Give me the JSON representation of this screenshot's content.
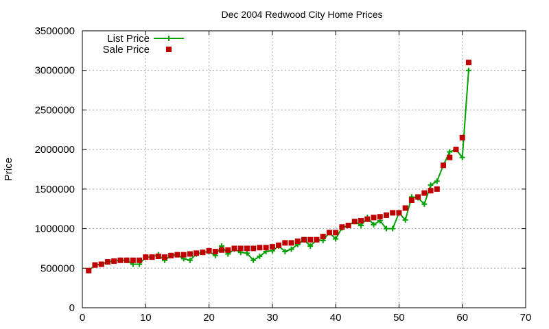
{
  "chart_data": {
    "type": "line",
    "title": "Dec 2004 Redwood City Home Prices",
    "xlabel": "",
    "ylabel": "Price",
    "xlim": [
      0,
      70
    ],
    "ylim": [
      0,
      3500000
    ],
    "x_ticks": [
      "0",
      "10",
      "20",
      "30",
      "40",
      "50",
      "60",
      "70"
    ],
    "y_ticks": [
      "0",
      "500000",
      "1000000",
      "1500000",
      "2000000",
      "2500000",
      "3000000",
      "3500000"
    ],
    "grid": true,
    "legend_position": "top-left",
    "x": [
      1,
      2,
      3,
      4,
      5,
      6,
      7,
      8,
      9,
      10,
      11,
      12,
      13,
      14,
      15,
      16,
      17,
      18,
      19,
      20,
      21,
      22,
      23,
      24,
      25,
      26,
      27,
      28,
      29,
      30,
      31,
      32,
      33,
      34,
      35,
      36,
      37,
      38,
      39,
      40,
      41,
      42,
      43,
      44,
      45,
      46,
      47,
      48,
      49,
      50,
      51,
      52,
      53,
      54,
      55,
      56,
      57,
      58,
      59,
      60,
      61
    ],
    "series": [
      {
        "name": "List Price",
        "style": "line-with-plus",
        "color": "#00a000",
        "values": [
          470000,
          540000,
          550000,
          580000,
          590000,
          600000,
          600000,
          550000,
          550000,
          640000,
          640000,
          670000,
          600000,
          660000,
          670000,
          620000,
          600000,
          680000,
          700000,
          710000,
          660000,
          780000,
          680000,
          740000,
          700000,
          690000,
          600000,
          650000,
          710000,
          720000,
          780000,
          710000,
          740000,
          800000,
          860000,
          780000,
          860000,
          850000,
          950000,
          870000,
          1010000,
          1040000,
          1090000,
          1040000,
          1140000,
          1050000,
          1100000,
          1000000,
          1000000,
          1200000,
          1110000,
          1400000,
          1390000,
          1310000,
          1550000,
          1600000,
          1800000,
          1970000,
          2000000,
          1900000,
          3000000
        ]
      },
      {
        "name": "Sale Price",
        "style": "square-points",
        "color": "#c00000",
        "values": [
          470000,
          540000,
          550000,
          580000,
          590000,
          600000,
          600000,
          600000,
          600000,
          640000,
          640000,
          650000,
          640000,
          660000,
          670000,
          670000,
          680000,
          690000,
          700000,
          720000,
          710000,
          730000,
          730000,
          750000,
          750000,
          750000,
          750000,
          760000,
          760000,
          770000,
          790000,
          820000,
          820000,
          840000,
          860000,
          860000,
          860000,
          900000,
          950000,
          950000,
          1020000,
          1040000,
          1090000,
          1100000,
          1120000,
          1140000,
          1150000,
          1170000,
          1200000,
          1200000,
          1260000,
          1360000,
          1400000,
          1450000,
          1480000,
          1500000,
          1800000,
          1900000,
          2000000,
          2150000,
          3100000
        ]
      }
    ]
  }
}
